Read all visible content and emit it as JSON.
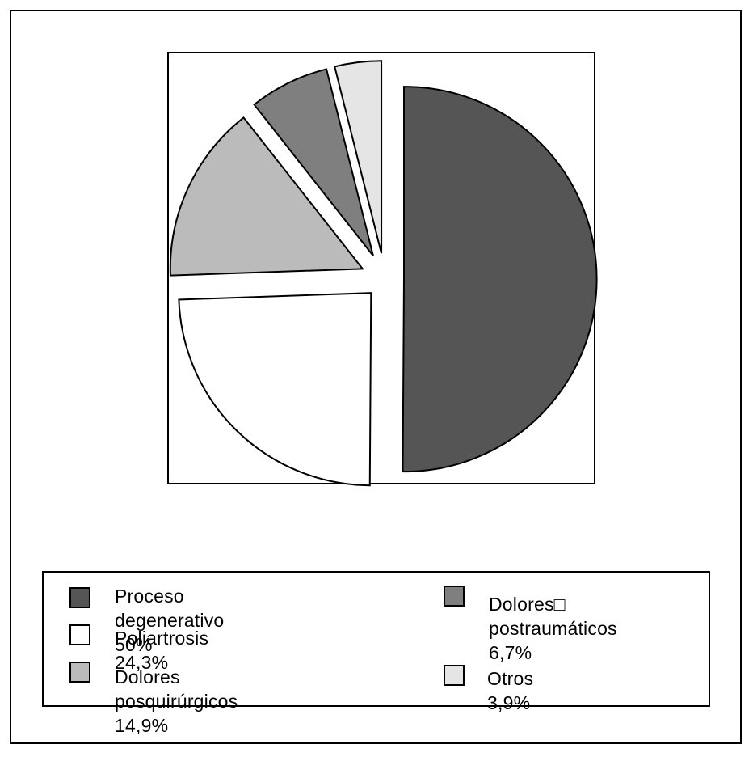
{
  "chart_data": {
    "type": "pie",
    "title": "",
    "exploded": true,
    "start_angle_deg": 90,
    "direction": "clockwise",
    "legend_placement": "bottom",
    "slices": [
      {
        "label": "Proceso degenerativo 50%",
        "value": 50,
        "color": "#555555"
      },
      {
        "label": "Poliartrosis 24,3%",
        "value": 24.3,
        "color": "#ffffff"
      },
      {
        "label": "Dolores posquirúrgicos 14,9%",
        "value": 14.9,
        "color": "#bbbbbb"
      },
      {
        "label": "Dolores□\npostraumáticos 6,7%",
        "value": 6.7,
        "color": "#7f7f7f"
      },
      {
        "label": "Otros 3,9%",
        "value": 3.9,
        "color": "#e5e5e5"
      }
    ]
  },
  "legend": {
    "items": [
      {
        "label": "Proceso degenerativo 50%",
        "color": "#555555"
      },
      {
        "label": "Poliartrosis 24,3%",
        "color": "#ffffff"
      },
      {
        "label": "Dolores posquirúrgicos 14,9%",
        "color": "#bbbbbb"
      },
      {
        "label": "Dolores□\npostraumáticos 6,7%",
        "color": "#7f7f7f"
      },
      {
        "label": "Otros 3,9%",
        "color": "#e5e5e5"
      }
    ]
  }
}
